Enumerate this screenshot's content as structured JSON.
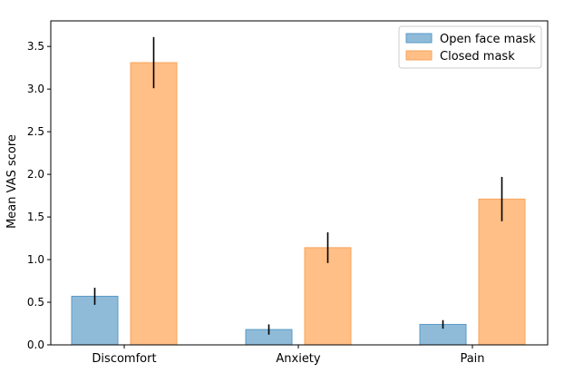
{
  "chart_data": {
    "type": "bar",
    "title": "",
    "xlabel": "",
    "ylabel": "Mean VAS score",
    "categories": [
      "Discomfort",
      "Anxiety",
      "Pain"
    ],
    "series": [
      {
        "name": "Open face mask",
        "values": [
          0.57,
          0.18,
          0.24
        ],
        "errors": [
          0.1,
          0.06,
          0.05
        ],
        "color": "#1f77b4"
      },
      {
        "name": "Closed mask",
        "values": [
          3.31,
          1.14,
          1.71
        ],
        "errors": [
          0.3,
          0.18,
          0.26
        ],
        "color": "#ff7f0e"
      }
    ],
    "ylim": [
      0,
      3.8
    ],
    "yticks": [
      "0.0",
      "0.5",
      "1.0",
      "1.5",
      "2.0",
      "2.5",
      "3.0",
      "3.5"
    ],
    "grid": false,
    "legend_position": "top-right"
  }
}
